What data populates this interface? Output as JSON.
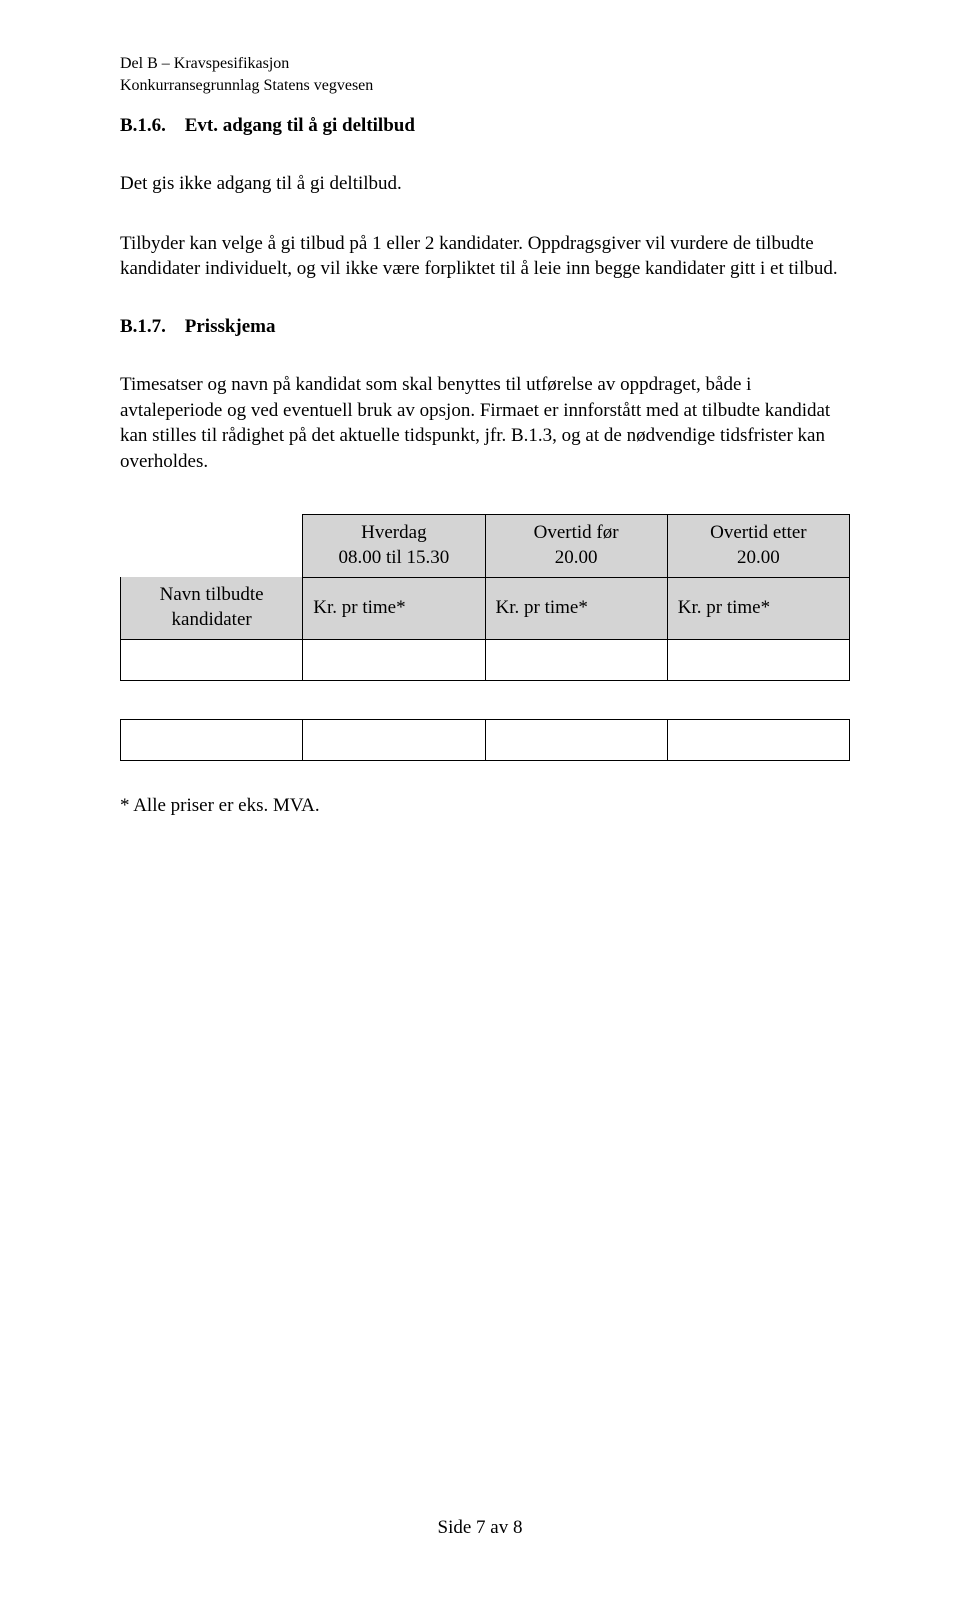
{
  "header": {
    "line1": "Del B – Kravspesifikasjon",
    "line2": "Konkurransegrunnlag Statens vegvesen"
  },
  "section_b16": {
    "num": "B.1.6.",
    "title": "Evt. adgang til å gi deltilbud",
    "para1": "Det gis ikke adgang til å gi deltilbud.",
    "para2": "Tilbyder kan velge å gi tilbud på 1 eller 2 kandidater. Oppdragsgiver vil vurdere de tilbudte kandidater individuelt, og vil ikke være forpliktet til å leie inn begge kandidater gitt i et tilbud."
  },
  "section_b17": {
    "num": "B.1.7.",
    "title": "Prisskjema",
    "para1": "Timesatser og navn på kandidat som skal benyttes til utførelse av oppdraget, både i avtaleperiode og ved eventuell bruk av opsjon. Firmaet er innforstått med at tilbudte kandidat kan stilles til rådighet på det aktuelle tidspunkt, jfr. B.1.3, og at de nødvendige tidsfrister kan overholdes."
  },
  "table": {
    "row1_col1": "Hverdag",
    "row1_col1b": "08.00 til 15.30",
    "row1_col2": "Overtid før",
    "row1_col2b": "20.00",
    "row1_col3": "Overtid etter",
    "row1_col3b": "20.00",
    "row2_col0a": "Navn tilbudte",
    "row2_col0b": "kandidater",
    "row2_col1": "Kr. pr time*",
    "row2_col2": "Kr. pr time*",
    "row2_col3": "Kr. pr time*",
    "header_bg": "#d4d4d4"
  },
  "footnote": "* Alle priser er eks. MVA.",
  "footer": "Side 7 av 8"
}
